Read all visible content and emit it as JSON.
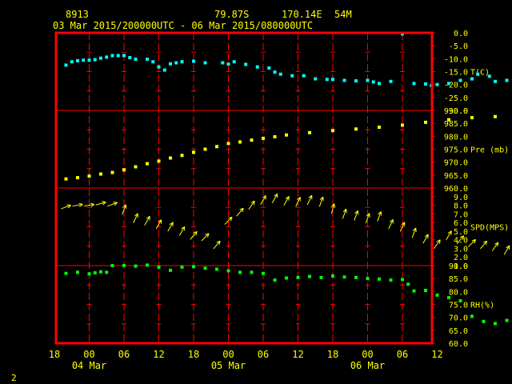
{
  "header": {
    "station": "8913",
    "lat": "79.87S",
    "lon": "170.14E",
    "elev": "54M",
    "range": "03 Mar 2015/200000UTC - 06 Mar 2015/080000UTC"
  },
  "page_number": "2",
  "colors": {
    "background": "#000000",
    "frame": "#ff0000",
    "grid": "#ff0000",
    "text": "#ffff00",
    "temperature": "#00ffff",
    "pressure": "#ffff00",
    "wind": "#ffff00",
    "humidity": "#00ff00"
  },
  "chart_data": {
    "type": "scatter",
    "x_axis": {
      "hour_ticks": [
        "18",
        "00",
        "06",
        "12",
        "18",
        "00",
        "06",
        "12",
        "18",
        "00",
        "06",
        "12"
      ],
      "day_labels": [
        "04 Mar",
        "05 Mar",
        "06 Mar"
      ],
      "start_hour": 18,
      "hours_per_tick": 6,
      "tick_count": 12
    },
    "panels": [
      {
        "key": "temperature",
        "label": "T(C)",
        "ylim": [
          -30,
          0
        ],
        "ticks": [
          "0.0",
          "-5.0",
          "-10.0",
          "-15.0",
          "-20.0",
          "-25.0",
          "-30.0"
        ],
        "x": [
          2,
          3,
          4,
          5,
          6,
          7,
          8,
          9,
          10,
          11,
          12,
          13,
          14,
          16,
          17,
          18,
          19,
          20,
          21,
          22,
          24,
          26,
          29,
          30,
          31,
          33,
          35,
          37,
          38,
          39,
          41,
          43,
          45,
          47,
          48,
          50,
          52,
          54,
          55,
          56,
          58,
          60,
          62,
          64,
          65,
          66,
          68,
          70,
          72,
          73,
          75,
          76,
          78,
          80,
          82
        ],
        "values": [
          -12.5,
          -11.2,
          -10.8,
          -10.6,
          -10.6,
          -10.4,
          -9.8,
          -9.4,
          -8.8,
          -8.8,
          -8.8,
          -9.6,
          -10.2,
          -10.2,
          -11.2,
          -13.2,
          -14.4,
          -12.0,
          -11.6,
          -11.2,
          -11.0,
          -11.6,
          -11.6,
          -12.1,
          -11.2,
          -12.2,
          -13.2,
          -13.6,
          -15.2,
          -16.0,
          -16.6,
          -16.6,
          -17.8,
          -18.0,
          -18.0,
          -18.4,
          -18.6,
          -18.4,
          -19.0,
          -19.6,
          -18.8,
          -0.4,
          -19.6,
          -19.8,
          -20.4,
          -20.0,
          -19.6,
          -18.4,
          -17.8,
          -16.0,
          -16.8,
          -18.8,
          -18.4,
          -17.6,
          -17.2
        ]
      },
      {
        "key": "pressure",
        "label": "Pre (mb)",
        "ylim": [
          960,
          990
        ],
        "ticks": [
          "990.0",
          "985.0",
          "980.0",
          "975.0",
          "970.0",
          "965.0",
          "960.0"
        ],
        "x": [
          2,
          4,
          6,
          8,
          10,
          12,
          14,
          16,
          18,
          20,
          22,
          24,
          26,
          28,
          30,
          32,
          34,
          36,
          38,
          40,
          44,
          48,
          52,
          56,
          60,
          64,
          68,
          72,
          76,
          80
        ],
        "values": [
          963.5,
          964.0,
          964.6,
          965.4,
          966.0,
          967.0,
          968.2,
          969.4,
          970.4,
          971.6,
          972.6,
          973.8,
          975.0,
          976.0,
          977.2,
          977.8,
          978.5,
          979.2,
          979.8,
          980.5,
          981.4,
          982.2,
          982.8,
          983.5,
          984.3,
          985.4,
          986.4,
          987.2,
          987.6,
          987.4
        ]
      },
      {
        "key": "wind",
        "label": "SPD(MPS)",
        "ylim": [
          1,
          10
        ],
        "ticks": [
          "9.0",
          "8.0",
          "7.0",
          "6.0",
          "5.0",
          "4.0",
          "3.0",
          "2.0",
          "1.0"
        ],
        "x": [
          2,
          4,
          6,
          8,
          10,
          12,
          14,
          16,
          18,
          20,
          22,
          24,
          26,
          28,
          30,
          32,
          34,
          36,
          38,
          40,
          42,
          44,
          46,
          48,
          50,
          52,
          54,
          56,
          58,
          60,
          62,
          64,
          66,
          68,
          70,
          72,
          74,
          76,
          78,
          80,
          82
        ],
        "values": [
          7.8,
          8.0,
          8.0,
          8.2,
          8.1,
          7.5,
          6.5,
          6.2,
          5.8,
          5.5,
          5.0,
          4.5,
          4.3,
          3.4,
          6.2,
          7.2,
          8.0,
          8.6,
          8.8,
          8.5,
          8.4,
          8.6,
          8.4,
          7.6,
          7.0,
          6.8,
          6.5,
          6.7,
          5.8,
          5.5,
          4.8,
          4.1,
          3.5,
          4.5,
          4.0,
          3.6,
          3.4,
          3.2,
          2.8,
          1.5,
          1.8
        ],
        "directions_deg": [
          70,
          80,
          80,
          75,
          70,
          20,
          25,
          30,
          30,
          30,
          30,
          40,
          45,
          40,
          45,
          40,
          35,
          30,
          30,
          30,
          25,
          25,
          20,
          15,
          20,
          20,
          20,
          20,
          25,
          25,
          20,
          30,
          35,
          30,
          40,
          45,
          40,
          35,
          30,
          180,
          130
        ]
      },
      {
        "key": "humidity",
        "label": "RH(%)",
        "ylim": [
          60,
          90
        ],
        "ticks": [
          "90.0",
          "85.0",
          "80.0",
          "75.0",
          "70.0",
          "65.0",
          "60.0"
        ],
        "x": [
          2,
          4,
          6,
          7,
          8,
          9,
          10,
          12,
          14,
          16,
          18,
          20,
          22,
          24,
          26,
          28,
          30,
          32,
          34,
          36,
          38,
          40,
          42,
          44,
          46,
          48,
          50,
          52,
          54,
          56,
          58,
          60,
          61,
          62,
          64,
          66,
          68,
          70,
          72,
          74,
          76,
          78,
          80,
          81,
          82
        ],
        "values": [
          87.0,
          87.4,
          86.8,
          87.2,
          87.6,
          87.4,
          90.0,
          90.0,
          89.8,
          90.2,
          89.4,
          88.2,
          89.4,
          89.6,
          89.0,
          88.6,
          88.0,
          87.4,
          87.4,
          87.0,
          84.4,
          85.2,
          85.4,
          85.8,
          85.4,
          86.0,
          85.6,
          85.4,
          85.0,
          84.8,
          84.4,
          84.6,
          82.8,
          80.2,
          80.4,
          78.6,
          77.6,
          76.4,
          70.4,
          68.4,
          67.6,
          68.8,
          75.6,
          74.6,
          75.0
        ]
      }
    ]
  }
}
